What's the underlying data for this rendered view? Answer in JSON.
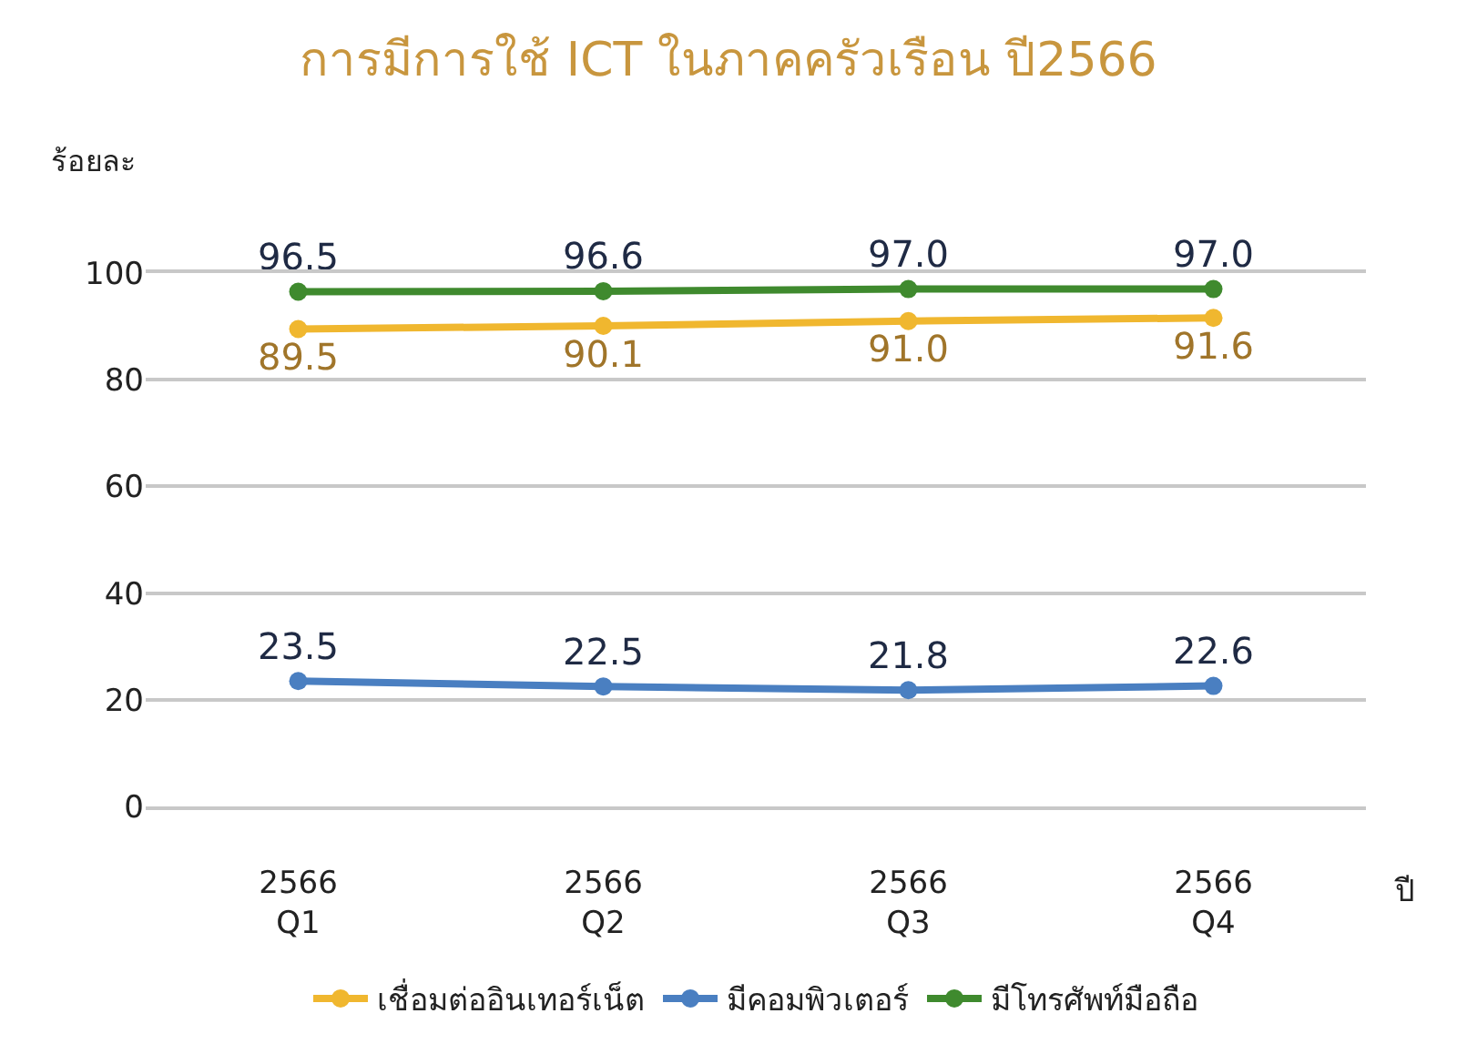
{
  "chart_data": {
    "type": "line",
    "title": "การมีการใช้ ICT ในภาคครัวเรือน ปี2566",
    "ylabel": "ร้อยละ",
    "xlabel": "ปี",
    "categories": [
      "2566\nQ1",
      "2566\nQ2",
      "2566\nQ3",
      "2566\nQ4"
    ],
    "series": [
      {
        "name": "เชื่อมต่ออินเทอร์เน็ต",
        "color": "#f0b72f",
        "values": [
          89.5,
          90.1,
          91.0,
          91.6
        ],
        "value_labels": [
          "89.5",
          "90.1",
          "91.0",
          "91.6"
        ]
      },
      {
        "name": "มีคอมพิวเตอร์",
        "color": "#4a7fc1",
        "values": [
          23.5,
          22.5,
          21.8,
          22.6
        ],
        "value_labels": [
          "23.5",
          "22.5",
          "21.8",
          "22.6"
        ]
      },
      {
        "name": "มีโทรศัพท์มือถือ",
        "color": "#3f8a2e",
        "values": [
          96.5,
          96.6,
          97.0,
          97.0
        ],
        "value_labels": [
          "96.5",
          "96.6",
          "97.0",
          "97.0"
        ]
      }
    ],
    "ylim": [
      0,
      100
    ],
    "yticks": [
      0,
      20,
      40,
      60,
      80,
      100
    ],
    "grid": "y",
    "legend": "bottom",
    "marker": "circle",
    "line_style": "solid"
  }
}
